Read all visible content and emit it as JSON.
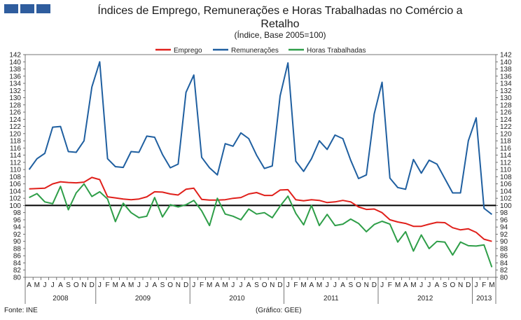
{
  "header": {
    "title": "Índices de Emprego, Remunerações e Horas Trabalhadas no Comércio a Retalho",
    "subtitle": "(Índice, Base 2005=100)"
  },
  "footer": {
    "source": "Fonte: INE",
    "credit": "(Gráfico: GEE)"
  },
  "chart_data": {
    "type": "line",
    "title": "Índices de Emprego, Remunerações e Horas Trabalhadas no Comércio a Retalho",
    "subtitle": "(Índice, Base 2005=100)",
    "ylim": [
      80,
      142
    ],
    "ytick_step": 2,
    "reference_line": 100,
    "legend_position": "top-center",
    "month_labels": [
      "A",
      "M",
      "J",
      "J",
      "A",
      "S",
      "O",
      "N",
      "D",
      "J",
      "F",
      "M",
      "A",
      "M",
      "J",
      "J",
      "A",
      "S",
      "O",
      "N",
      "D",
      "J",
      "F",
      "M",
      "A",
      "M",
      "J",
      "J",
      "A",
      "S",
      "O",
      "N",
      "D",
      "J",
      "F",
      "M",
      "A",
      "M",
      "J",
      "J",
      "A",
      "S",
      "O",
      "N",
      "D",
      "J",
      "F",
      "M",
      "A",
      "M",
      "J",
      "J",
      "A",
      "S",
      "O",
      "N",
      "D",
      "J",
      "F",
      "M"
    ],
    "years": [
      {
        "label": "2008",
        "start": 0,
        "end": 8
      },
      {
        "label": "2009",
        "start": 9,
        "end": 20
      },
      {
        "label": "2010",
        "start": 21,
        "end": 32
      },
      {
        "label": "2011",
        "start": 33,
        "end": 44
      },
      {
        "label": "2012",
        "start": 45,
        "end": 56
      },
      {
        "label": "2013",
        "start": 57,
        "end": 59
      }
    ],
    "series": [
      {
        "name": "Emprego",
        "color": "#e0201b",
        "values": [
          104.6,
          104.7,
          104.8,
          106.0,
          106.6,
          106.4,
          106.3,
          106.5,
          107.8,
          107.2,
          102.4,
          102.1,
          101.8,
          101.6,
          101.8,
          102.4,
          103.8,
          103.7,
          103.2,
          102.9,
          104.5,
          104.8,
          101.7,
          101.5,
          101.5,
          101.6,
          102.0,
          102.2,
          103.2,
          103.6,
          102.8,
          102.8,
          104.3,
          104.4,
          101.6,
          101.3,
          101.6,
          101.4,
          100.8,
          101.0,
          101.4,
          101.0,
          99.6,
          98.9,
          99.0,
          98.0,
          96.0,
          95.4,
          95.0,
          94.2,
          94.2,
          94.8,
          95.3,
          95.2,
          93.8,
          93.2,
          93.5,
          92.5,
          90.6,
          90.0
        ]
      },
      {
        "name": "Remunerações",
        "color": "#1f5fa0",
        "values": [
          110.0,
          113.0,
          114.5,
          121.8,
          122.0,
          115.0,
          114.8,
          118.0,
          133.0,
          140.0,
          113.0,
          110.8,
          110.6,
          115.0,
          114.8,
          119.3,
          119.0,
          114.2,
          110.5,
          111.5,
          131.5,
          136.3,
          113.4,
          110.5,
          108.5,
          117.2,
          116.5,
          120.2,
          118.6,
          114.0,
          110.3,
          111.0,
          130.5,
          139.7,
          112.3,
          109.5,
          113.0,
          118.0,
          115.6,
          119.6,
          118.6,
          112.6,
          107.5,
          108.5,
          125.5,
          134.3,
          107.6,
          105.0,
          104.5,
          112.8,
          109.0,
          112.6,
          111.5,
          107.5,
          103.5,
          103.5,
          118.0,
          124.4,
          99.2,
          97.5
        ]
      },
      {
        "name": "Horas Trabalhadas",
        "color": "#2e9e48",
        "values": [
          102.2,
          103.3,
          101.0,
          100.5,
          105.3,
          98.8,
          103.5,
          106.0,
          102.5,
          103.8,
          101.8,
          95.5,
          100.6,
          98.0,
          96.6,
          97.0,
          102.2,
          96.8,
          100.2,
          99.6,
          100.2,
          101.4,
          98.5,
          94.4,
          102.0,
          97.6,
          97.0,
          96.0,
          99.0,
          97.6,
          98.0,
          96.6,
          99.8,
          102.6,
          97.8,
          94.6,
          100.0,
          94.4,
          97.5,
          94.4,
          94.8,
          96.2,
          95.0,
          92.7,
          94.7,
          95.6,
          94.8,
          89.8,
          92.7,
          87.3,
          91.8,
          88.0,
          90.0,
          89.8,
          86.2,
          89.8,
          88.8,
          88.7,
          89.0,
          82.8
        ]
      }
    ]
  }
}
